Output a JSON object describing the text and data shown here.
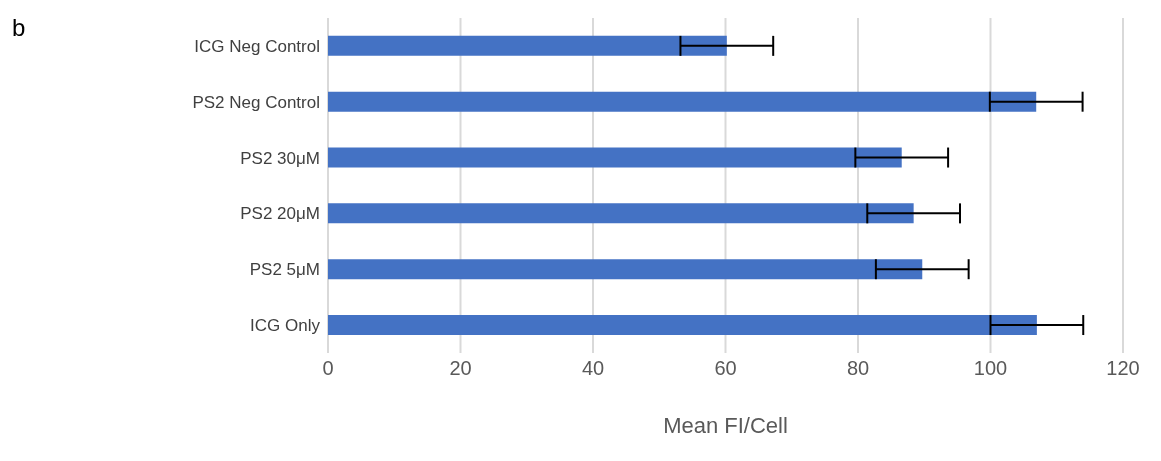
{
  "chart_data": {
    "type": "bar",
    "orientation": "horizontal",
    "xlabel": "Mean FI/Cell",
    "annotations": [
      "b"
    ],
    "categories": [
      "ICG Neg Control",
      "PS2 Neg Control",
      "PS2 30μM",
      "PS2 20μM",
      "PS2 5μM",
      "ICG Only"
    ],
    "values": [
      60.2,
      106.9,
      86.6,
      88.4,
      89.7,
      107
    ],
    "errors": [
      7,
      7,
      7,
      7,
      7,
      7
    ],
    "color": "#4472c4",
    "xlim": [
      0,
      120
    ],
    "xticks": [
      0,
      20,
      40,
      60,
      80,
      100,
      120
    ],
    "grid": "x"
  }
}
